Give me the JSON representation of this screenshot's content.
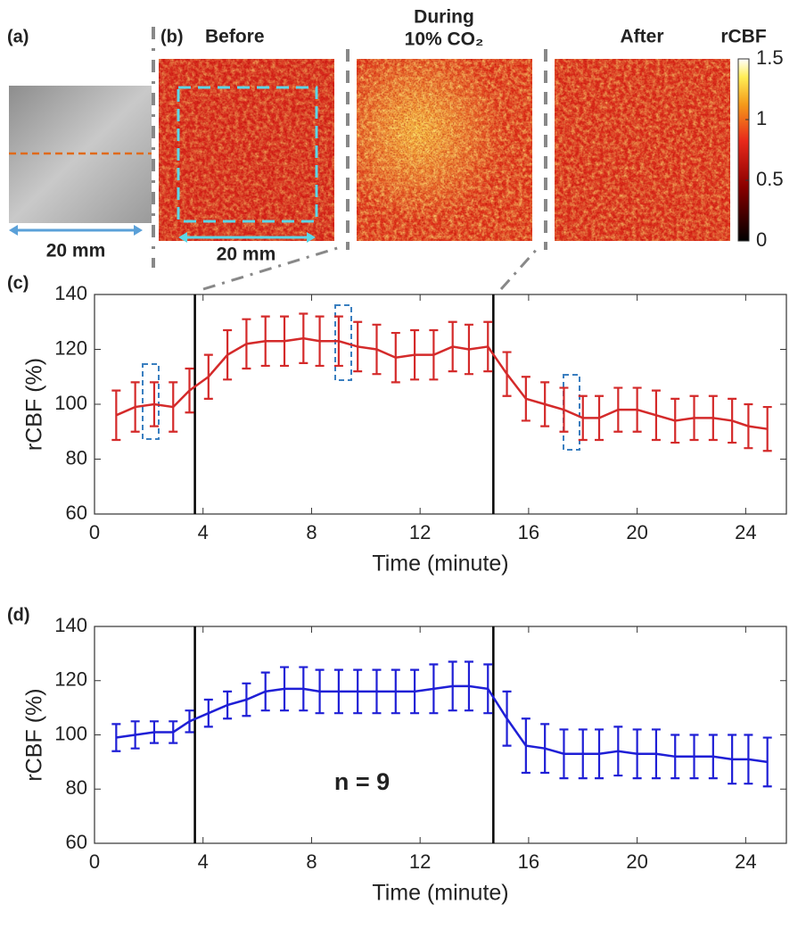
{
  "figure": {
    "panel_a": "(a)",
    "panel_b": "(b)",
    "scale_a": "20 mm",
    "scale_b": "20 mm",
    "titles": {
      "before": "Before",
      "during": "During",
      "during_condition": "10% CO₂",
      "after": "After"
    },
    "colorbar": {
      "label": "rCBF",
      "lim": [
        0,
        1.5
      ],
      "ticks": [
        0,
        0.5,
        1,
        1.5
      ]
    }
  },
  "chart_data": [
    {
      "type": "line",
      "panel": "(c)",
      "xlabel": "Time (minute)",
      "ylabel": "rCBF (%)",
      "x": [
        0.8,
        1.5,
        2.2,
        2.9,
        3.5,
        4.2,
        4.9,
        5.6,
        6.3,
        7.0,
        7.7,
        8.3,
        9.0,
        9.7,
        10.4,
        11.1,
        11.8,
        12.5,
        13.2,
        13.8,
        14.5,
        15.2,
        15.9,
        16.6,
        17.3,
        18.0,
        18.6,
        19.3,
        20.0,
        20.7,
        21.4,
        22.1,
        22.8,
        23.5,
        24.1,
        24.8
      ],
      "series": [
        {
          "color": "#d42a2a",
          "values": [
            96,
            99,
            100,
            99,
            105,
            110,
            118,
            122,
            123,
            123,
            124,
            123,
            123,
            121,
            120,
            117,
            118,
            118,
            121,
            120,
            121,
            111,
            102,
            100,
            98,
            95,
            95,
            98,
            98,
            96,
            94,
            95,
            95,
            94,
            92,
            91
          ],
          "errors": [
            9,
            9,
            8,
            9,
            8,
            8,
            9,
            9,
            9,
            9,
            9,
            9,
            9,
            9,
            9,
            9,
            9,
            9,
            9,
            9,
            9,
            8,
            8,
            8,
            8,
            8,
            8,
            8,
            8,
            9,
            8,
            8,
            8,
            8,
            8,
            8
          ]
        }
      ],
      "xlim": [
        0,
        25.5
      ],
      "ylim": [
        60,
        140
      ],
      "xticks": [
        0,
        4,
        8,
        12,
        16,
        20,
        24
      ],
      "yticks": [
        60,
        80,
        100,
        120,
        140
      ],
      "vlines": [
        3.7,
        14.7
      ]
    },
    {
      "type": "line",
      "panel": "(d)",
      "xlabel": "Time (minute)",
      "ylabel": "rCBF (%)",
      "annotation": "n = 9",
      "x": [
        0.8,
        1.5,
        2.2,
        2.9,
        3.5,
        4.2,
        4.9,
        5.6,
        6.3,
        7.0,
        7.7,
        8.3,
        9.0,
        9.7,
        10.4,
        11.1,
        11.8,
        12.5,
        13.2,
        13.8,
        14.5,
        15.2,
        15.9,
        16.6,
        17.3,
        18.0,
        18.6,
        19.3,
        20.0,
        20.7,
        21.4,
        22.1,
        22.8,
        23.5,
        24.1,
        24.8
      ],
      "series": [
        {
          "color": "#1f1fd6",
          "values": [
            99,
            100,
            101,
            101,
            105,
            108,
            111,
            113,
            116,
            117,
            117,
            116,
            116,
            116,
            116,
            116,
            116,
            117,
            118,
            118,
            117,
            106,
            96,
            95,
            93,
            93,
            93,
            94,
            93,
            93,
            92,
            92,
            92,
            91,
            91,
            90
          ],
          "errors": [
            5,
            5,
            4,
            4,
            4,
            5,
            5,
            6,
            7,
            8,
            8,
            8,
            8,
            8,
            8,
            8,
            8,
            9,
            9,
            9,
            9,
            10,
            10,
            9,
            9,
            9,
            9,
            9,
            9,
            9,
            8,
            8,
            8,
            9,
            9,
            9
          ]
        }
      ],
      "xlim": [
        0,
        25.5
      ],
      "ylim": [
        60,
        140
      ],
      "xticks": [
        0,
        4,
        8,
        12,
        16,
        20,
        24
      ],
      "yticks": [
        60,
        80,
        100,
        120,
        140
      ],
      "vlines": [
        3.7,
        14.7
      ]
    }
  ]
}
